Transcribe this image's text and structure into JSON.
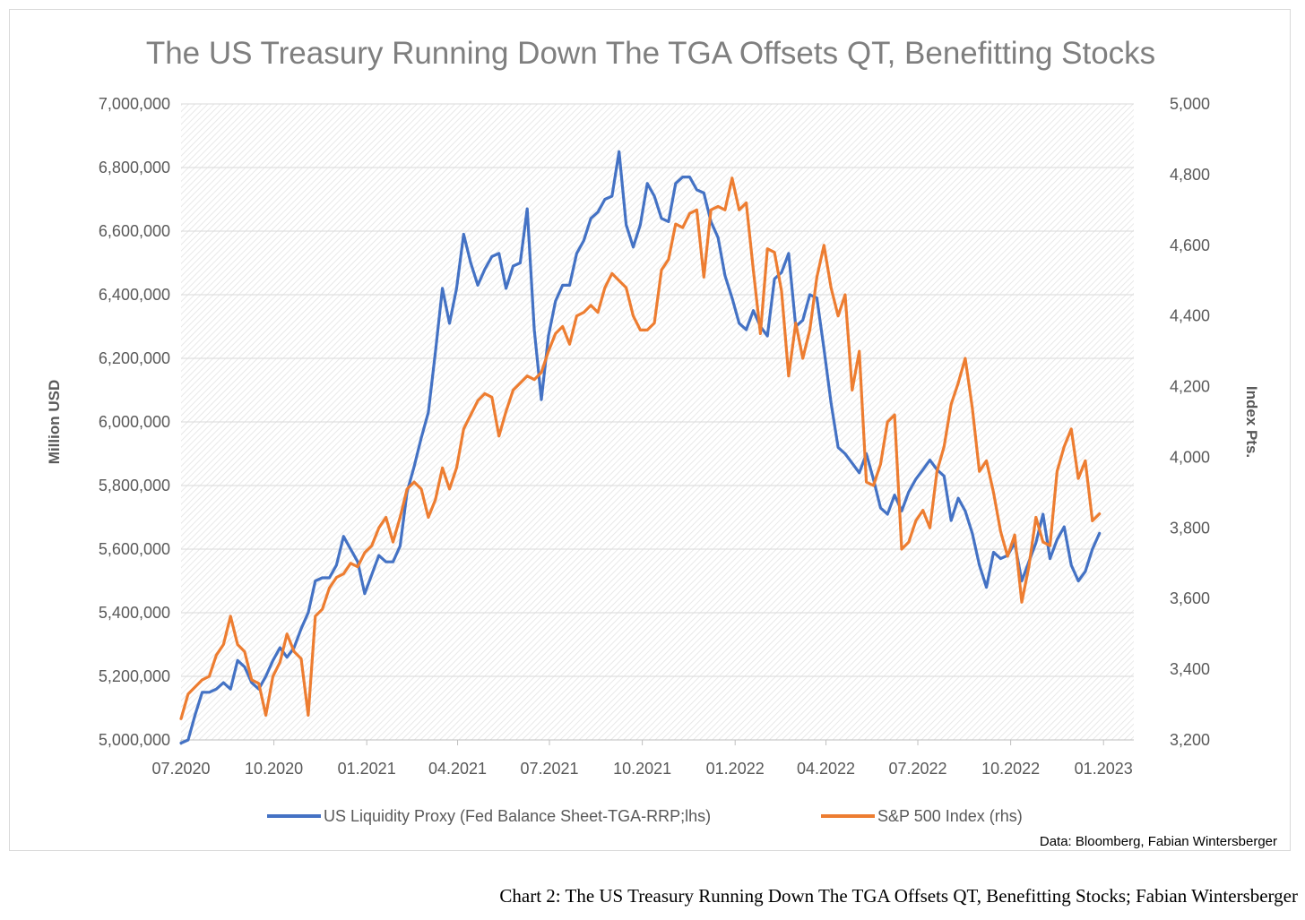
{
  "chart_data": {
    "type": "line",
    "title": "The US Treasury Running Down The TGA Offsets QT, Benefitting Stocks",
    "ylabel_left": "Million USD",
    "ylabel_right": "Index Pts.",
    "ylim_left": [
      5000000,
      7000000
    ],
    "ylim_right": [
      3200,
      5000
    ],
    "y_ticks_left": [
      "5,000,000",
      "5,200,000",
      "5,400,000",
      "5,600,000",
      "5,800,000",
      "6,000,000",
      "6,200,000",
      "6,400,000",
      "6,600,000",
      "6,800,000",
      "7,000,000"
    ],
    "y_ticks_right": [
      "3,200",
      "3,400",
      "3,600",
      "3,800",
      "4,000",
      "4,200",
      "4,400",
      "4,600",
      "4,800",
      "5,000"
    ],
    "x_ticks": [
      "07.2020",
      "10.2020",
      "01.2021",
      "04.2021",
      "07.2021",
      "10.2021",
      "01.2022",
      "04.2022",
      "07.2022",
      "10.2022",
      "01.2023"
    ],
    "xlim": [
      "2020-07-01",
      "2023-01-31"
    ],
    "grid": true,
    "legend_position": "bottom",
    "source": "Data: Bloomberg, Fabian Wintersberger",
    "colors": {
      "liquidity": "#4472c4",
      "sp500": "#ed7d31",
      "title": "#7f7f7f",
      "text": "#595959"
    },
    "series": [
      {
        "name": "US Liquidity Proxy (Fed Balance Sheet-TGA-RRP;lhs)",
        "axis": "left",
        "points": [
          [
            "2020-07-01",
            4990000
          ],
          [
            "2020-07-08",
            5000000
          ],
          [
            "2020-07-15",
            5080000
          ],
          [
            "2020-07-22",
            5150000
          ],
          [
            "2020-07-29",
            5150000
          ],
          [
            "2020-08-05",
            5160000
          ],
          [
            "2020-08-12",
            5180000
          ],
          [
            "2020-08-19",
            5160000
          ],
          [
            "2020-08-26",
            5250000
          ],
          [
            "2020-09-02",
            5230000
          ],
          [
            "2020-09-09",
            5180000
          ],
          [
            "2020-09-16",
            5160000
          ],
          [
            "2020-09-23",
            5200000
          ],
          [
            "2020-09-30",
            5250000
          ],
          [
            "2020-10-07",
            5290000
          ],
          [
            "2020-10-14",
            5260000
          ],
          [
            "2020-10-21",
            5290000
          ],
          [
            "2020-10-28",
            5350000
          ],
          [
            "2020-11-04",
            5400000
          ],
          [
            "2020-11-11",
            5500000
          ],
          [
            "2020-11-18",
            5510000
          ],
          [
            "2020-11-25",
            5510000
          ],
          [
            "2020-12-02",
            5550000
          ],
          [
            "2020-12-09",
            5640000
          ],
          [
            "2020-12-16",
            5600000
          ],
          [
            "2020-12-23",
            5560000
          ],
          [
            "2020-12-30",
            5460000
          ],
          [
            "2021-01-06",
            5520000
          ],
          [
            "2021-01-13",
            5580000
          ],
          [
            "2021-01-20",
            5560000
          ],
          [
            "2021-01-27",
            5560000
          ],
          [
            "2021-02-03",
            5610000
          ],
          [
            "2021-02-10",
            5780000
          ],
          [
            "2021-02-17",
            5860000
          ],
          [
            "2021-02-24",
            5950000
          ],
          [
            "2021-03-03",
            6030000
          ],
          [
            "2021-03-10",
            6220000
          ],
          [
            "2021-03-17",
            6420000
          ],
          [
            "2021-03-24",
            6310000
          ],
          [
            "2021-03-31",
            6420000
          ],
          [
            "2021-04-07",
            6590000
          ],
          [
            "2021-04-14",
            6500000
          ],
          [
            "2021-04-21",
            6430000
          ],
          [
            "2021-04-28",
            6480000
          ],
          [
            "2021-05-05",
            6520000
          ],
          [
            "2021-05-12",
            6530000
          ],
          [
            "2021-05-19",
            6420000
          ],
          [
            "2021-05-26",
            6490000
          ],
          [
            "2021-06-02",
            6500000
          ],
          [
            "2021-06-09",
            6670000
          ],
          [
            "2021-06-16",
            6290000
          ],
          [
            "2021-06-23",
            6070000
          ],
          [
            "2021-06-30",
            6270000
          ],
          [
            "2021-07-07",
            6380000
          ],
          [
            "2021-07-14",
            6430000
          ],
          [
            "2021-07-21",
            6430000
          ],
          [
            "2021-07-28",
            6530000
          ],
          [
            "2021-08-04",
            6570000
          ],
          [
            "2021-08-11",
            6640000
          ],
          [
            "2021-08-18",
            6660000
          ],
          [
            "2021-08-25",
            6700000
          ],
          [
            "2021-09-01",
            6710000
          ],
          [
            "2021-09-08",
            6850000
          ],
          [
            "2021-09-15",
            6620000
          ],
          [
            "2021-09-22",
            6550000
          ],
          [
            "2021-09-29",
            6620000
          ],
          [
            "2021-10-06",
            6750000
          ],
          [
            "2021-10-13",
            6710000
          ],
          [
            "2021-10-20",
            6640000
          ],
          [
            "2021-10-27",
            6630000
          ],
          [
            "2021-11-03",
            6750000
          ],
          [
            "2021-11-10",
            6770000
          ],
          [
            "2021-11-17",
            6770000
          ],
          [
            "2021-11-24",
            6730000
          ],
          [
            "2021-12-01",
            6720000
          ],
          [
            "2021-12-08",
            6630000
          ],
          [
            "2021-12-15",
            6580000
          ],
          [
            "2021-12-22",
            6460000
          ],
          [
            "2021-12-29",
            6390000
          ],
          [
            "2022-01-05",
            6310000
          ],
          [
            "2022-01-12",
            6290000
          ],
          [
            "2022-01-19",
            6350000
          ],
          [
            "2022-01-26",
            6300000
          ],
          [
            "2022-02-02",
            6270000
          ],
          [
            "2022-02-09",
            6450000
          ],
          [
            "2022-02-16",
            6470000
          ],
          [
            "2022-02-23",
            6530000
          ],
          [
            "2022-03-02",
            6300000
          ],
          [
            "2022-03-09",
            6320000
          ],
          [
            "2022-03-16",
            6400000
          ],
          [
            "2022-03-23",
            6390000
          ],
          [
            "2022-03-30",
            6230000
          ],
          [
            "2022-04-06",
            6060000
          ],
          [
            "2022-04-13",
            5920000
          ],
          [
            "2022-04-20",
            5900000
          ],
          [
            "2022-04-27",
            5870000
          ],
          [
            "2022-05-04",
            5840000
          ],
          [
            "2022-05-11",
            5900000
          ],
          [
            "2022-05-18",
            5820000
          ],
          [
            "2022-05-25",
            5730000
          ],
          [
            "2022-06-01",
            5710000
          ],
          [
            "2022-06-08",
            5770000
          ],
          [
            "2022-06-15",
            5720000
          ],
          [
            "2022-06-22",
            5780000
          ],
          [
            "2022-06-29",
            5820000
          ],
          [
            "2022-07-06",
            5850000
          ],
          [
            "2022-07-13",
            5880000
          ],
          [
            "2022-07-20",
            5850000
          ],
          [
            "2022-07-27",
            5830000
          ],
          [
            "2022-08-03",
            5690000
          ],
          [
            "2022-08-10",
            5760000
          ],
          [
            "2022-08-17",
            5720000
          ],
          [
            "2022-08-24",
            5650000
          ],
          [
            "2022-08-31",
            5550000
          ],
          [
            "2022-09-07",
            5480000
          ],
          [
            "2022-09-14",
            5590000
          ],
          [
            "2022-09-21",
            5570000
          ],
          [
            "2022-09-28",
            5580000
          ],
          [
            "2022-10-05",
            5620000
          ],
          [
            "2022-10-12",
            5500000
          ],
          [
            "2022-10-19",
            5560000
          ],
          [
            "2022-10-26",
            5620000
          ],
          [
            "2022-11-02",
            5710000
          ],
          [
            "2022-11-09",
            5570000
          ],
          [
            "2022-11-16",
            5630000
          ],
          [
            "2022-11-23",
            5670000
          ],
          [
            "2022-11-30",
            5550000
          ],
          [
            "2022-12-07",
            5500000
          ],
          [
            "2022-12-14",
            5530000
          ],
          [
            "2022-12-21",
            5600000
          ],
          [
            "2022-12-28",
            5650000
          ]
        ]
      },
      {
        "name": "S&P 500 Index (rhs)",
        "axis": "right",
        "points": [
          [
            "2020-07-01",
            3260
          ],
          [
            "2020-07-08",
            3330
          ],
          [
            "2020-07-15",
            3350
          ],
          [
            "2020-07-22",
            3370
          ],
          [
            "2020-07-29",
            3380
          ],
          [
            "2020-08-05",
            3440
          ],
          [
            "2020-08-12",
            3470
          ],
          [
            "2020-08-19",
            3550
          ],
          [
            "2020-08-26",
            3470
          ],
          [
            "2020-09-02",
            3450
          ],
          [
            "2020-09-09",
            3370
          ],
          [
            "2020-09-16",
            3360
          ],
          [
            "2020-09-23",
            3270
          ],
          [
            "2020-09-30",
            3380
          ],
          [
            "2020-10-07",
            3420
          ],
          [
            "2020-10-14",
            3500
          ],
          [
            "2020-10-21",
            3450
          ],
          [
            "2020-10-28",
            3430
          ],
          [
            "2020-11-04",
            3270
          ],
          [
            "2020-11-11",
            3550
          ],
          [
            "2020-11-18",
            3570
          ],
          [
            "2020-11-25",
            3630
          ],
          [
            "2020-12-02",
            3660
          ],
          [
            "2020-12-09",
            3670
          ],
          [
            "2020-12-16",
            3700
          ],
          [
            "2020-12-23",
            3690
          ],
          [
            "2020-12-30",
            3730
          ],
          [
            "2021-01-06",
            3750
          ],
          [
            "2021-01-13",
            3800
          ],
          [
            "2021-01-20",
            3830
          ],
          [
            "2021-01-27",
            3760
          ],
          [
            "2021-02-03",
            3830
          ],
          [
            "2021-02-10",
            3910
          ],
          [
            "2021-02-17",
            3930
          ],
          [
            "2021-02-24",
            3910
          ],
          [
            "2021-03-03",
            3830
          ],
          [
            "2021-03-10",
            3880
          ],
          [
            "2021-03-17",
            3970
          ],
          [
            "2021-03-24",
            3910
          ],
          [
            "2021-03-31",
            3970
          ],
          [
            "2021-04-07",
            4080
          ],
          [
            "2021-04-14",
            4120
          ],
          [
            "2021-04-21",
            4160
          ],
          [
            "2021-04-28",
            4180
          ],
          [
            "2021-05-05",
            4170
          ],
          [
            "2021-05-12",
            4060
          ],
          [
            "2021-05-19",
            4130
          ],
          [
            "2021-05-26",
            4190
          ],
          [
            "2021-06-02",
            4210
          ],
          [
            "2021-06-09",
            4230
          ],
          [
            "2021-06-16",
            4220
          ],
          [
            "2021-06-23",
            4240
          ],
          [
            "2021-06-30",
            4300
          ],
          [
            "2021-07-07",
            4350
          ],
          [
            "2021-07-14",
            4370
          ],
          [
            "2021-07-21",
            4320
          ],
          [
            "2021-07-28",
            4400
          ],
          [
            "2021-08-04",
            4410
          ],
          [
            "2021-08-11",
            4430
          ],
          [
            "2021-08-18",
            4410
          ],
          [
            "2021-08-25",
            4480
          ],
          [
            "2021-09-01",
            4520
          ],
          [
            "2021-09-08",
            4500
          ],
          [
            "2021-09-15",
            4480
          ],
          [
            "2021-09-22",
            4400
          ],
          [
            "2021-09-29",
            4360
          ],
          [
            "2021-10-06",
            4360
          ],
          [
            "2021-10-13",
            4380
          ],
          [
            "2021-10-20",
            4530
          ],
          [
            "2021-10-27",
            4560
          ],
          [
            "2021-11-03",
            4660
          ],
          [
            "2021-11-10",
            4650
          ],
          [
            "2021-11-17",
            4690
          ],
          [
            "2021-11-24",
            4700
          ],
          [
            "2021-12-01",
            4510
          ],
          [
            "2021-12-08",
            4700
          ],
          [
            "2021-12-15",
            4710
          ],
          [
            "2021-12-22",
            4700
          ],
          [
            "2021-12-29",
            4790
          ],
          [
            "2022-01-05",
            4700
          ],
          [
            "2022-01-12",
            4720
          ],
          [
            "2022-01-19",
            4530
          ],
          [
            "2022-01-26",
            4350
          ],
          [
            "2022-02-02",
            4590
          ],
          [
            "2022-02-09",
            4580
          ],
          [
            "2022-02-16",
            4470
          ],
          [
            "2022-02-23",
            4230
          ],
          [
            "2022-03-02",
            4380
          ],
          [
            "2022-03-09",
            4280
          ],
          [
            "2022-03-16",
            4360
          ],
          [
            "2022-03-23",
            4510
          ],
          [
            "2022-03-30",
            4600
          ],
          [
            "2022-04-06",
            4480
          ],
          [
            "2022-04-13",
            4400
          ],
          [
            "2022-04-20",
            4460
          ],
          [
            "2022-04-27",
            4190
          ],
          [
            "2022-05-04",
            4300
          ],
          [
            "2022-05-11",
            3930
          ],
          [
            "2022-05-18",
            3920
          ],
          [
            "2022-05-25",
            3980
          ],
          [
            "2022-06-01",
            4100
          ],
          [
            "2022-06-08",
            4120
          ],
          [
            "2022-06-15",
            3740
          ],
          [
            "2022-06-22",
            3760
          ],
          [
            "2022-06-29",
            3820
          ],
          [
            "2022-07-06",
            3850
          ],
          [
            "2022-07-13",
            3800
          ],
          [
            "2022-07-20",
            3960
          ],
          [
            "2022-07-27",
            4030
          ],
          [
            "2022-08-03",
            4150
          ],
          [
            "2022-08-10",
            4210
          ],
          [
            "2022-08-17",
            4280
          ],
          [
            "2022-08-24",
            4140
          ],
          [
            "2022-08-31",
            3960
          ],
          [
            "2022-09-07",
            3990
          ],
          [
            "2022-09-14",
            3900
          ],
          [
            "2022-09-21",
            3790
          ],
          [
            "2022-09-28",
            3720
          ],
          [
            "2022-10-05",
            3780
          ],
          [
            "2022-10-12",
            3590
          ],
          [
            "2022-10-19",
            3690
          ],
          [
            "2022-10-26",
            3830
          ],
          [
            "2022-11-02",
            3760
          ],
          [
            "2022-11-09",
            3750
          ],
          [
            "2022-11-16",
            3960
          ],
          [
            "2022-11-23",
            4030
          ],
          [
            "2022-11-30",
            4080
          ],
          [
            "2022-12-07",
            3940
          ],
          [
            "2022-12-14",
            3990
          ],
          [
            "2022-12-21",
            3820
          ],
          [
            "2022-12-28",
            3840
          ]
        ]
      }
    ]
  },
  "caption": "Chart 2: The US Treasury Running Down The TGA Offsets QT, Benefitting Stocks; Fabian Wintersberger"
}
